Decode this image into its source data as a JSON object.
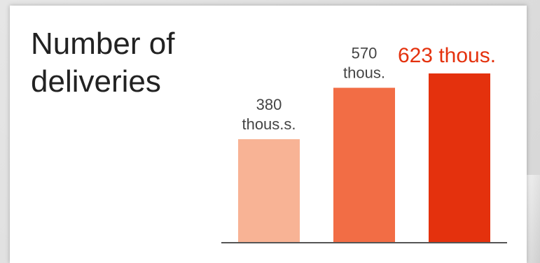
{
  "card": {
    "title_line1": "Number of",
    "title_line2": "deliveries"
  },
  "colors": {
    "bar1": "#f8b395",
    "bar2": "#f26d45",
    "bar3": "#e4310d",
    "label_default": "#444444",
    "label_highlight": "#e4310d",
    "axis": "#555555"
  },
  "chart_data": {
    "type": "bar",
    "title": "Number of deliveries",
    "categories": [
      "",
      "",
      ""
    ],
    "values": [
      380,
      570,
      623
    ],
    "data_labels": [
      [
        "380",
        "thous.s."
      ],
      [
        "570",
        "thous."
      ],
      [
        "623 thous."
      ]
    ],
    "ylim": [
      0,
      700
    ],
    "grid": false,
    "legend": "none"
  }
}
